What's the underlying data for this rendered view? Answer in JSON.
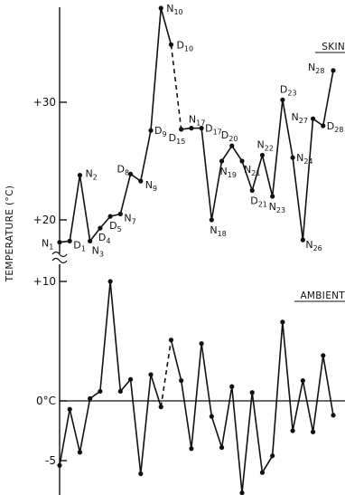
{
  "chart_data": [
    {
      "type": "line",
      "title": "",
      "xlabel": "",
      "ylabel": "TEMPERATURE (°C)",
      "ylim": [
        18,
        38
      ],
      "yticks": [
        {
          "value": 20,
          "label": "+20"
        },
        {
          "value": 30,
          "label": "+30"
        }
      ],
      "grid": false,
      "series": [
        {
          "name": "SKIN",
          "points": [
            {
              "x": 1,
              "y": 18.1,
              "label": "N1"
            },
            {
              "x": 2,
              "y": 18.2,
              "label": "D1"
            },
            {
              "x": 3,
              "y": 23.8,
              "label": "N2"
            },
            {
              "x": 4,
              "y": 18.2,
              "label": "N3"
            },
            {
              "x": 5,
              "y": 19.3,
              "label": "D4"
            },
            {
              "x": 6,
              "y": 20.3,
              "label": "D5"
            },
            {
              "x": 7,
              "y": 20.5,
              "label": "N7"
            },
            {
              "x": 8,
              "y": 23.9,
              "label": "D8"
            },
            {
              "x": 9,
              "y": 23.3,
              "label": "N9"
            },
            {
              "x": 10,
              "y": 27.6,
              "label": "D9"
            },
            {
              "x": 11,
              "y": 38.0,
              "label": "N10"
            },
            {
              "x": 12,
              "y": 34.9,
              "label": "D10"
            },
            {
              "x": 13,
              "y": 27.7,
              "label": "D15"
            },
            {
              "x": 14,
              "y": 27.8,
              "label": "N17"
            },
            {
              "x": 15,
              "y": 27.8,
              "label": "D17"
            },
            {
              "x": 16,
              "y": 20.0,
              "label": "N18"
            },
            {
              "x": 17,
              "y": 25.0,
              "label": "N19"
            },
            {
              "x": 18,
              "y": 26.3,
              "label": "D20"
            },
            {
              "x": 19,
              "y": 25.0,
              "label": "N21"
            },
            {
              "x": 20,
              "y": 22.5,
              "label": "D21"
            },
            {
              "x": 21,
              "y": 25.5,
              "label": "N22"
            },
            {
              "x": 22,
              "y": 22.0,
              "label": "N23"
            },
            {
              "x": 23,
              "y": 30.2,
              "label": "D23"
            },
            {
              "x": 24,
              "y": 25.3,
              "label": "N24"
            },
            {
              "x": 25,
              "y": 18.3,
              "label": "N26"
            },
            {
              "x": 26,
              "y": 28.6,
              "label": "N27"
            },
            {
              "x": 27,
              "y": 28.0,
              "label": "D28"
            },
            {
              "x": 28,
              "y": 32.7,
              "label": "N28"
            }
          ]
        }
      ]
    },
    {
      "type": "line",
      "title": "",
      "xlabel": "",
      "ylabel": "TEMPERATURE (°C)",
      "ylim": [
        -8,
        12
      ],
      "yticks": [
        {
          "value": 10,
          "label": "+10"
        },
        {
          "value": 0,
          "label": "0°C"
        },
        {
          "value": -5,
          "label": "-5"
        }
      ],
      "grid": false,
      "series": [
        {
          "name": "AMBIENT",
          "points": [
            {
              "x": 1,
              "y": -5.4
            },
            {
              "x": 2,
              "y": -0.7
            },
            {
              "x": 3,
              "y": -4.3
            },
            {
              "x": 4,
              "y": 0.2
            },
            {
              "x": 5,
              "y": 0.8
            },
            {
              "x": 6,
              "y": 10.0
            },
            {
              "x": 7,
              "y": 0.8
            },
            {
              "x": 8,
              "y": 1.8
            },
            {
              "x": 9,
              "y": -6.1
            },
            {
              "x": 10,
              "y": 2.2
            },
            {
              "x": 11,
              "y": -0.5
            },
            {
              "x": 12,
              "y": 5.1
            },
            {
              "x": 13,
              "y": 1.7
            },
            {
              "x": 14,
              "y": -4.0
            },
            {
              "x": 15,
              "y": 4.8
            },
            {
              "x": 16,
              "y": -1.3
            },
            {
              "x": 17,
              "y": -3.9
            },
            {
              "x": 18,
              "y": 1.2
            },
            {
              "x": 19,
              "y": -7.7
            },
            {
              "x": 20,
              "y": 0.7
            },
            {
              "x": 21,
              "y": -6.0
            },
            {
              "x": 22,
              "y": -4.6
            },
            {
              "x": 23,
              "y": 6.6
            },
            {
              "x": 24,
              "y": -2.5
            },
            {
              "x": 25,
              "y": 1.7
            },
            {
              "x": 26,
              "y": -2.6
            },
            {
              "x": 27,
              "y": 3.8
            },
            {
              "x": 28,
              "y": -1.2
            }
          ]
        }
      ]
    }
  ]
}
